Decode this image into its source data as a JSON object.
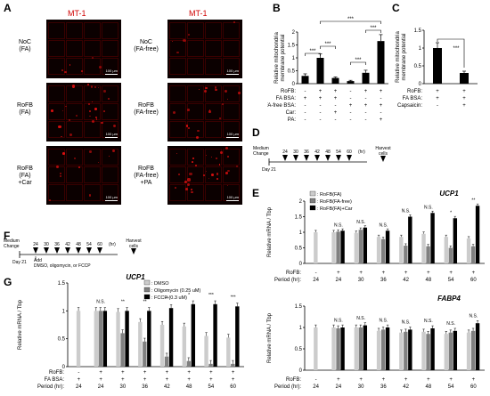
{
  "panel_labels": [
    "A",
    "B",
    "C",
    "D",
    "E",
    "F",
    "G"
  ],
  "panelA": {
    "title": "MT-1",
    "left_rows": [
      {
        "label": "NoC\n(FA)",
        "scale": "100 μm"
      },
      {
        "label": "RoFB\n(FA)",
        "scale": "100 μm"
      },
      {
        "label": "RoFB\n(FA)\n+Car",
        "scale": "100 μm"
      }
    ],
    "right_rows": [
      {
        "label": "NoC\n(FA-free)",
        "scale": "100 μm"
      },
      {
        "label": "RoFB\n(FA-free)",
        "scale": "100 μm"
      },
      {
        "label": "RoFB\n(FA-free)\n+PA",
        "scale": "100 μm"
      }
    ]
  },
  "panelD": {
    "medium": "Medium\nChange",
    "day": "Day 21",
    "harvest": "Harvest\ncells",
    "days": [
      "24",
      "30",
      "36",
      "42",
      "48",
      "54",
      "60"
    ],
    "unit": "(hr)"
  },
  "panelF": {
    "medium": "Medium\nChange",
    "day": "Day 21",
    "add": "Add\nDMSO, oligomycin, or FCCP",
    "harvest": "Harvest\ncells",
    "days": [
      "24",
      "30",
      "36",
      "42",
      "48",
      "54",
      "60"
    ],
    "unit": "(hr)"
  },
  "chart_data": [
    {
      "id": "B",
      "type": "bar",
      "ylabel": "Relative mitochondria\nmembrane potential",
      "ylim": [
        0,
        2
      ],
      "yticks": [
        "0",
        "0.5",
        "1",
        "1.5",
        "2"
      ],
      "values": [
        0.3,
        1.0,
        0.22,
        0.1,
        0.42,
        1.65
      ],
      "errors": [
        0.08,
        0.15,
        0.04,
        0.03,
        0.1,
        0.25
      ],
      "colors": [
        "#000000",
        "#000000",
        "#000000",
        "#000000",
        "#000000",
        "#000000"
      ],
      "row_labels": [
        "RoFB:",
        "FA BSA:",
        "FA-free BSA:",
        "Car:",
        "PA:"
      ],
      "rows": [
        [
          "-",
          "+",
          "+",
          "-",
          "+",
          "+"
        ],
        [
          "+",
          "+",
          "+",
          "-",
          "-",
          "-"
        ],
        [
          "-",
          "-",
          "-",
          "+",
          "+",
          "+"
        ],
        [
          "-",
          "-",
          "+",
          "-",
          "-",
          "-"
        ],
        [
          "-",
          "-",
          "-",
          "-",
          "-",
          "+"
        ]
      ],
      "sig": [
        "***",
        "***",
        "***",
        "***",
        "***"
      ]
    },
    {
      "id": "C",
      "type": "bar",
      "ylabel": "Relative mitochondria\nmembrane potential",
      "ylim": [
        0,
        1.5
      ],
      "yticks": [
        "0",
        "0.5",
        "1",
        "1.5"
      ],
      "values": [
        1.0,
        0.3
      ],
      "errors": [
        0.15,
        0.05
      ],
      "colors": [
        "#000000",
        "#000000"
      ],
      "row_labels": [
        "RoFB:",
        "FA BSA:",
        "Capsaicin:"
      ],
      "rows": [
        [
          "+",
          "+"
        ],
        [
          "+",
          "+"
        ],
        [
          "-",
          "+"
        ]
      ],
      "sig": [
        "***"
      ]
    },
    {
      "id": "E-UCP1",
      "type": "bar",
      "title": "UCP1",
      "ylabel": "Relative mRNA / Tbp",
      "ylim": [
        0,
        2
      ],
      "yticks": [
        "0",
        "0.5",
        "1",
        "1.5",
        "2"
      ],
      "legend": [
        ": RoFB(FA)",
        ": RoFB(FA-free)",
        ": RoFB(FA)+Car"
      ],
      "series_colors": [
        "#cccccc",
        "#808080",
        "#000000"
      ],
      "groups": [
        {
          "period": "24",
          "rofb": "-",
          "values": [
            1.0
          ]
        },
        {
          "period": "24",
          "rofb": "+",
          "values": [
            1.0,
            1.02,
            1.05
          ]
        },
        {
          "period": "30",
          "rofb": "+",
          "values": [
            0.98,
            1.08,
            1.15
          ]
        },
        {
          "period": "36",
          "rofb": "+",
          "values": [
            0.85,
            0.78,
            1.05
          ]
        },
        {
          "period": "42",
          "rofb": "+",
          "values": [
            0.85,
            0.57,
            1.5
          ]
        },
        {
          "period": "48",
          "rofb": "+",
          "values": [
            0.95,
            0.55,
            1.62
          ]
        },
        {
          "period": "54",
          "rofb": "+",
          "values": [
            0.85,
            0.5,
            1.45
          ]
        },
        {
          "period": "60",
          "rofb": "+",
          "values": [
            0.8,
            0.55,
            1.85
          ]
        }
      ],
      "annotations": [
        "N.S.",
        "N.S.",
        "N.S.",
        "N.S.",
        "N.S.",
        "*",
        "**",
        "*",
        "**",
        "*",
        "**",
        "*",
        "**",
        "***",
        "***",
        "***",
        "***",
        "***"
      ],
      "row_labels": [
        "RoFB:",
        "Period (hr):"
      ]
    },
    {
      "id": "E-FABP4",
      "type": "bar",
      "title": "FABP4",
      "ylabel": "Relative mRNA / Tbp",
      "ylim": [
        0,
        1.5
      ],
      "yticks": [
        "0",
        "0.5",
        "1",
        "1.5"
      ],
      "series_colors": [
        "#cccccc",
        "#808080",
        "#000000"
      ],
      "groups": [
        {
          "period": "24",
          "rofb": "-",
          "values": [
            1.0
          ]
        },
        {
          "period": "24",
          "rofb": "+",
          "values": [
            1.0,
            0.98,
            1.0
          ]
        },
        {
          "period": "30",
          "rofb": "+",
          "values": [
            1.0,
            1.0,
            1.05
          ]
        },
        {
          "period": "36",
          "rofb": "+",
          "values": [
            0.92,
            0.95,
            1.0
          ]
        },
        {
          "period": "42",
          "rofb": "+",
          "values": [
            0.88,
            0.9,
            0.95
          ]
        },
        {
          "period": "48",
          "rofb": "+",
          "values": [
            0.9,
            0.85,
            0.98
          ]
        },
        {
          "period": "54",
          "rofb": "+",
          "values": [
            0.85,
            0.88,
            0.92
          ]
        },
        {
          "period": "60",
          "rofb": "+",
          "values": [
            0.88,
            0.92,
            1.1
          ]
        }
      ],
      "annotations": [
        "N.S.",
        "N.S.",
        "N.S.",
        "N.S.",
        "N.S.",
        "N.S.",
        "N.S."
      ],
      "row_labels": [
        "RoFB:",
        "Period (hr):"
      ]
    },
    {
      "id": "G-UCP1",
      "type": "bar",
      "title": "UCP1",
      "ylabel": "Relative mRNA / Tbp",
      "ylim": [
        0,
        1.5
      ],
      "yticks": [
        "0",
        "0.5",
        "1",
        "1.5"
      ],
      "legend": [
        ": DMSO",
        ": Oligomycin (0.25 uM)",
        ": FCCP (0.3 uM)"
      ],
      "series_colors": [
        "#cccccc",
        "#808080",
        "#000000"
      ],
      "groups": [
        {
          "period": "24",
          "rofb": "-",
          "fabsa": "+",
          "values": [
            1.0
          ]
        },
        {
          "period": "24",
          "rofb": "+",
          "fabsa": "+",
          "values": [
            1.0,
            1.0,
            1.0
          ]
        },
        {
          "period": "30",
          "rofb": "+",
          "fabsa": "+",
          "values": [
            0.98,
            0.6,
            1.0
          ]
        },
        {
          "period": "36",
          "rofb": "+",
          "fabsa": "+",
          "values": [
            0.8,
            0.45,
            1.0
          ]
        },
        {
          "period": "42",
          "rofb": "+",
          "fabsa": "+",
          "values": [
            0.75,
            0.18,
            1.05
          ]
        },
        {
          "period": "48",
          "rofb": "+",
          "fabsa": "+",
          "values": [
            0.72,
            0.1,
            1.12
          ]
        },
        {
          "period": "54",
          "rofb": "+",
          "fabsa": "+",
          "values": [
            0.55,
            0.05,
            1.12
          ]
        },
        {
          "period": "60",
          "rofb": "+",
          "fabsa": "+",
          "values": [
            0.52,
            0.05,
            1.08
          ]
        }
      ],
      "annotations": [
        "N.S.",
        "**",
        "**",
        "**",
        "*",
        "***",
        "***",
        "***",
        "***",
        "***",
        "***",
        "***",
        "***",
        "***"
      ],
      "row_labels": [
        "RoFB:",
        "FA BSA:",
        "Period (hr):"
      ]
    }
  ]
}
